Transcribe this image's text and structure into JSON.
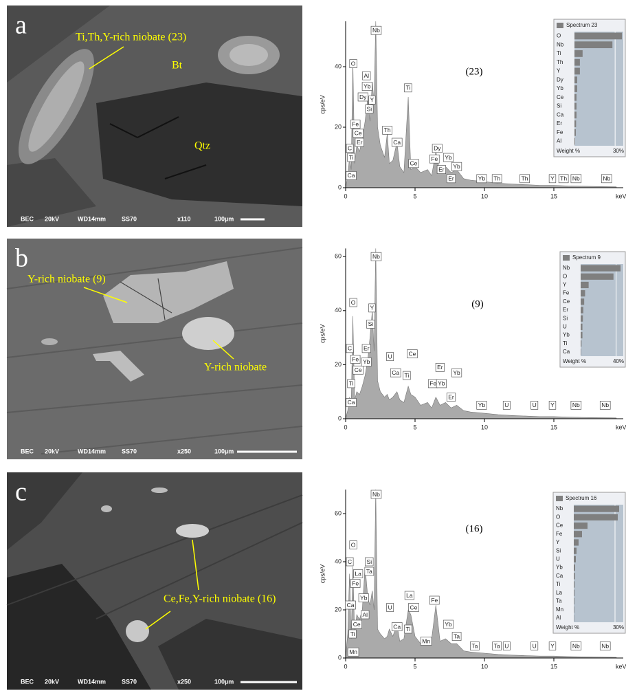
{
  "panels": [
    {
      "letter": "a",
      "labels": [
        "Ti,Th,Y-rich niobate (23)",
        "Bt",
        "Qtz"
      ],
      "footer": [
        "BEC",
        "20kV",
        "WD14mm",
        "SS70",
        "x110",
        "100µm"
      ]
    },
    {
      "letter": "b",
      "labels": [
        "Y-rich niobate (9)",
        "Y-rich niobate"
      ],
      "footer": [
        "BEC",
        "20kV",
        "WD14mm",
        "SS70",
        "x250",
        "100µm"
      ]
    },
    {
      "letter": "c",
      "labels": [
        "Ce,Fe,Y-rich niobate (16)"
      ],
      "footer": [
        "BEC",
        "20kV",
        "WD14mm",
        "SS70",
        "x250",
        "100µm"
      ]
    }
  ],
  "chart_data": [
    {
      "type": "area",
      "title": "(23)",
      "ylabel": "cps/eV",
      "xlabel": "keV",
      "color": "#aaaaaa",
      "xlim": [
        0,
        20
      ],
      "xticks": [
        0,
        5,
        10,
        15
      ],
      "ylim": [
        0,
        55
      ],
      "yticks": [
        0,
        20,
        40
      ],
      "x": [
        0,
        0.15,
        0.28,
        0.4,
        0.52,
        0.65,
        0.8,
        1.0,
        1.2,
        1.4,
        1.6,
        1.75,
        1.92,
        2.05,
        2.17,
        2.3,
        2.5,
        2.8,
        3.0,
        3.15,
        3.4,
        3.7,
        3.9,
        4.2,
        4.51,
        4.7,
        5.0,
        5.4,
        5.9,
        6.2,
        6.5,
        6.8,
        7.2,
        7.6,
        8.0,
        8.5,
        9,
        10,
        11,
        12,
        13,
        14,
        15,
        16,
        17,
        18,
        19.5
      ],
      "values": [
        0,
        4,
        10,
        6,
        42,
        8,
        14,
        12,
        16,
        22,
        30,
        22,
        35,
        28,
        55,
        20,
        14,
        10,
        18,
        8,
        9,
        15,
        7,
        5,
        30,
        6,
        7,
        5,
        6,
        4,
        12,
        5,
        7,
        5,
        6,
        3,
        2.5,
        2,
        1.5,
        1.2,
        1,
        0.8,
        0.8,
        0.6,
        0.5,
        0.4,
        0.3
      ],
      "peak_labels": [
        "Nb",
        "O",
        "Al",
        "Yb",
        "Dy",
        "Y",
        "Si",
        "Fe",
        "Ce",
        "Er",
        "C",
        "Ti",
        "Ca",
        "Th",
        "Ca",
        "Ti",
        "Ce",
        "Dy",
        "Fe",
        "Er",
        "Yb",
        "Yb",
        "Er",
        "Yb",
        "Th",
        "Th",
        "Y",
        "Th",
        "Nb",
        "Nb"
      ],
      "inset": {
        "type": "bar",
        "title": "Spectrum 23",
        "xlabel": "Weight %",
        "color": "#7f7f7f",
        "categories": [
          "O",
          "Nb",
          "Ti",
          "Th",
          "Y",
          "Dy",
          "Yb",
          "Ce",
          "Si",
          "Ca",
          "Er",
          "Fe",
          "Al"
        ],
        "values": [
          35,
          28,
          6,
          4,
          4,
          2,
          2,
          1.5,
          1.5,
          1.5,
          1.2,
          1,
          0.5
        ],
        "xlim": [
          0,
          36
        ],
        "xticks": [
          {
            "value": 30,
            "label": "30%"
          }
        ]
      }
    },
    {
      "type": "area",
      "title": "(9)",
      "ylabel": "cps/eV",
      "xlabel": "keV",
      "color": "#aaaaaa",
      "xlim": [
        0,
        20
      ],
      "xticks": [
        0,
        5,
        10,
        15
      ],
      "ylim": [
        0,
        63
      ],
      "yticks": [
        0,
        20,
        40,
        60
      ],
      "x": [
        0,
        0.15,
        0.28,
        0.4,
        0.52,
        0.65,
        0.8,
        1.0,
        1.2,
        1.4,
        1.6,
        1.75,
        1.92,
        2.05,
        2.17,
        2.3,
        2.5,
        2.8,
        3.0,
        3.15,
        3.4,
        3.7,
        3.9,
        4.2,
        4.51,
        4.7,
        5.0,
        5.4,
        5.9,
        6.2,
        6.5,
        6.8,
        7.2,
        7.6,
        8.0,
        8.5,
        9,
        10,
        11,
        12,
        13,
        14,
        15,
        16,
        17,
        18,
        19.5
      ],
      "values": [
        0,
        3,
        8,
        5,
        38,
        7,
        10,
        9,
        12,
        16,
        22,
        30,
        40,
        25,
        63,
        14,
        10,
        8,
        9,
        7,
        8,
        10,
        7,
        6,
        12,
        9,
        8,
        5,
        6,
        4,
        8,
        5,
        6,
        4,
        5,
        3,
        2.5,
        2,
        1.5,
        1.2,
        1,
        0.8,
        0.8,
        0.6,
        0.5,
        0.4,
        0.3
      ],
      "peak_labels": [
        "Nb",
        "O",
        "Y",
        "Si",
        "C",
        "Er",
        "Fe",
        "Ce",
        "Yb",
        "Ti",
        "Ca",
        "U",
        "Ce",
        "Ca",
        "Ti",
        "Er",
        "Yb",
        "Fe",
        "Yb",
        "Er",
        "Yb",
        "U",
        "U",
        "Y",
        "Nb",
        "Nb"
      ],
      "inset": {
        "type": "bar",
        "title": "Spectrum 9",
        "xlabel": "Weight %",
        "color": "#7f7f7f",
        "categories": [
          "Nb",
          "O",
          "Y",
          "Fe",
          "Ce",
          "Er",
          "Si",
          "U",
          "Yb",
          "Ti",
          "Ca"
        ],
        "values": [
          45,
          37,
          9,
          5,
          4,
          3,
          2.5,
          2,
          2,
          1,
          0.5
        ],
        "xlim": [
          0,
          48
        ],
        "xticks": [
          {
            "value": 40,
            "label": "40%"
          }
        ]
      }
    },
    {
      "type": "area",
      "title": "(16)",
      "ylabel": "cps/eV",
      "xlabel": "keV",
      "color": "#aaaaaa",
      "xlim": [
        0,
        20
      ],
      "xticks": [
        0,
        5,
        10,
        15
      ],
      "ylim": [
        0,
        70
      ],
      "yticks": [
        0,
        20,
        40,
        60
      ],
      "x": [
        0,
        0.15,
        0.28,
        0.4,
        0.52,
        0.65,
        0.8,
        1.0,
        1.2,
        1.4,
        1.6,
        1.75,
        1.92,
        2.05,
        2.17,
        2.3,
        2.5,
        2.8,
        3.0,
        3.15,
        3.4,
        3.7,
        3.9,
        4.2,
        4.51,
        4.7,
        5.0,
        5.4,
        5.9,
        6.2,
        6.5,
        6.8,
        7.2,
        7.6,
        8.0,
        8.5,
        9,
        10,
        11,
        12,
        13,
        14,
        15,
        16,
        17,
        18,
        19.5
      ],
      "values": [
        0,
        10,
        35,
        8,
        38,
        10,
        18,
        16,
        20,
        38,
        25,
        22,
        28,
        20,
        70,
        12,
        10,
        8,
        9,
        12,
        9,
        14,
        7,
        8,
        20,
        18,
        9,
        6,
        7,
        8,
        22,
        7,
        8,
        6,
        6,
        3,
        2.5,
        2,
        1.5,
        1.2,
        1,
        0.8,
        0.8,
        0.6,
        0.5,
        0.4,
        0.3
      ],
      "peak_labels": [
        "Nb",
        "O",
        "C",
        "Si",
        "La",
        "Ta",
        "Fe",
        "Yb",
        "Ca",
        "Al",
        "Ce",
        "Ti",
        "Mn",
        "U",
        "La",
        "Ce",
        "Ca",
        "Ti",
        "Fe",
        "Yb",
        "Mn",
        "Ta",
        "Ta",
        "Ta",
        "U",
        "U",
        "Y",
        "Nb",
        "Nb"
      ],
      "inset": {
        "type": "bar",
        "title": "Spectrum 16",
        "xlabel": "Weight %",
        "color": "#7f7f7f",
        "categories": [
          "Nb",
          "O",
          "Ce",
          "Fe",
          "Y",
          "Si",
          "U",
          "Yb",
          "Ca",
          "Ti",
          "La",
          "Ta",
          "Mn",
          "Al"
        ],
        "values": [
          33,
          32,
          10,
          6,
          3.5,
          2,
          1.5,
          1,
          0.8,
          0.6,
          0.5,
          0.4,
          0.3,
          0.2
        ],
        "xlim": [
          0,
          36
        ],
        "xticks": [
          {
            "value": 30,
            "label": "30%"
          }
        ]
      }
    }
  ]
}
